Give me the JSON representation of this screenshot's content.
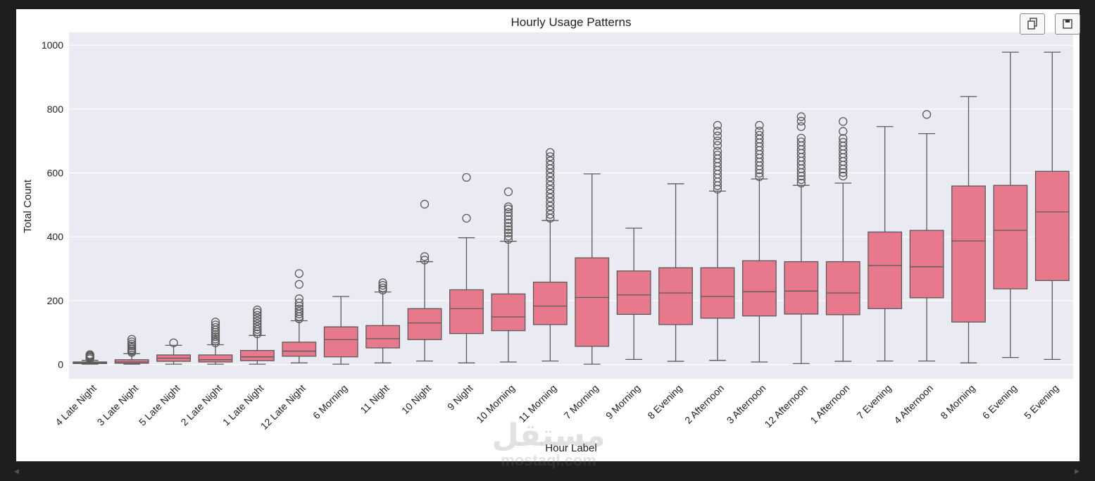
{
  "chart_data": {
    "type": "box",
    "title": "Hourly Usage Patterns",
    "xlabel": "Hour Label",
    "ylabel": "Total Count",
    "ylim": [
      -45,
      1040
    ],
    "yticks": [
      0,
      200,
      400,
      600,
      800,
      1000
    ],
    "grid": true,
    "legend": "none",
    "box_color": "#e8798c",
    "line_color": "#5a5a5a",
    "background_color": "#eaeaf2",
    "categories": [
      "4 Late Night",
      "3 Late Night",
      "5 Late Night",
      "2 Late Night",
      "1 Late Night",
      "12 Late Night",
      "6 Morning",
      "11 Night",
      "10 Night",
      "9 Night",
      "10 Morning",
      "11 Morning",
      "7 Morning",
      "9 Morning",
      "8 Evening",
      "2 Afternoon",
      "3 Afternoon",
      "12 Afternoon",
      "1 Afternoon",
      "7 Evening",
      "4 Afternoon",
      "8 Morning",
      "6 Evening",
      "5 Evening"
    ],
    "boxes": [
      {
        "q1": 3,
        "median": 5,
        "q3": 8,
        "whislo": 1,
        "whishi": 13,
        "fliers": [
          18,
          22,
          25,
          28,
          31
        ]
      },
      {
        "q1": 4,
        "median": 8,
        "q3": 15,
        "whislo": 1,
        "whishi": 34,
        "fliers": [
          38,
          42,
          47,
          52,
          58,
          64,
          71,
          79
        ]
      },
      {
        "q1": 10,
        "median": 20,
        "q3": 30,
        "whislo": 1,
        "whishi": 60,
        "fliers": [
          68
        ]
      },
      {
        "q1": 8,
        "median": 15,
        "q3": 30,
        "whislo": 1,
        "whishi": 62,
        "fliers": [
          68,
          74,
          80,
          87,
          94,
          101,
          108,
          116,
          124,
          133
        ]
      },
      {
        "q1": 12,
        "median": 24,
        "q3": 44,
        "whislo": 1,
        "whishi": 91,
        "fliers": [
          96,
          103,
          110,
          118,
          127,
          136,
          145,
          154,
          163,
          171
        ]
      },
      {
        "q1": 26,
        "median": 42,
        "q3": 70,
        "whislo": 5,
        "whishi": 137,
        "fliers": [
          143,
          150,
          158,
          166,
          174,
          183,
          193,
          206,
          251,
          285
        ]
      },
      {
        "q1": 24,
        "median": 78,
        "q3": 118,
        "whislo": 1,
        "whishi": 213,
        "fliers": []
      },
      {
        "q1": 52,
        "median": 81,
        "q3": 122,
        "whislo": 5,
        "whishi": 227,
        "fliers": [
          233,
          240,
          248,
          256
        ]
      },
      {
        "q1": 78,
        "median": 130,
        "q3": 175,
        "whislo": 11,
        "whishi": 322,
        "fliers": [
          327,
          338,
          502
        ]
      },
      {
        "q1": 97,
        "median": 175,
        "q3": 234,
        "whislo": 5,
        "whishi": 397,
        "fliers": [
          458,
          586
        ]
      },
      {
        "q1": 106,
        "median": 149,
        "q3": 221,
        "whislo": 8,
        "whishi": 386,
        "fliers": [
          392,
          402,
          412,
          422,
          432,
          443,
          454,
          465,
          476,
          487,
          494,
          541
        ]
      },
      {
        "q1": 125,
        "median": 183,
        "q3": 258,
        "whislo": 11,
        "whishi": 451,
        "fliers": [
          458,
          470,
          483,
          496,
          509,
          522,
          535,
          548,
          561,
          574,
          587,
          600,
          613,
          625,
          638,
          651,
          664
        ]
      },
      {
        "q1": 57,
        "median": 210,
        "q3": 334,
        "whislo": 1,
        "whishi": 597,
        "fliers": []
      },
      {
        "q1": 157,
        "median": 218,
        "q3": 293,
        "whislo": 16,
        "whishi": 427,
        "fliers": []
      },
      {
        "q1": 125,
        "median": 224,
        "q3": 303,
        "whislo": 10,
        "whishi": 566,
        "fliers": []
      },
      {
        "q1": 145,
        "median": 213,
        "q3": 303,
        "whislo": 13,
        "whishi": 543,
        "fliers": [
          549,
          560,
          572,
          584,
          596,
          608,
          620,
          632,
          644,
          656,
          668,
          686,
          700,
          716,
          731,
          749
        ]
      },
      {
        "q1": 152,
        "median": 228,
        "q3": 325,
        "whislo": 8,
        "whishi": 581,
        "fliers": [
          588,
          599,
          610,
          622,
          634,
          646,
          658,
          670,
          682,
          694,
          706,
          718,
          731,
          749
        ]
      },
      {
        "q1": 158,
        "median": 230,
        "q3": 322,
        "whislo": 3,
        "whishi": 561,
        "fliers": [
          568,
          579,
          590,
          601,
          613,
          625,
          637,
          649,
          661,
          673,
          685,
          697,
          709,
          745,
          762,
          776
        ]
      },
      {
        "q1": 156,
        "median": 224,
        "q3": 322,
        "whislo": 10,
        "whishi": 568,
        "fliers": [
          590,
          601,
          612,
          624,
          636,
          648,
          660,
          672,
          684,
          696,
          708,
          730,
          761
        ]
      },
      {
        "q1": 175,
        "median": 310,
        "q3": 415,
        "whislo": 11,
        "whishi": 745,
        "fliers": []
      },
      {
        "q1": 209,
        "median": 306,
        "q3": 420,
        "whislo": 11,
        "whishi": 723,
        "fliers": [
          783
        ]
      },
      {
        "q1": 133,
        "median": 387,
        "q3": 559,
        "whislo": 5,
        "whishi": 839,
        "fliers": []
      },
      {
        "q1": 237,
        "median": 420,
        "q3": 561,
        "whislo": 22,
        "whishi": 978,
        "fliers": []
      },
      {
        "q1": 263,
        "median": 478,
        "q3": 605,
        "whislo": 16,
        "whishi": 978,
        "fliers": []
      }
    ]
  },
  "toolbar": {
    "copy_icon": "copy-icon",
    "save_icon": "save-icon"
  },
  "watermark": {
    "arabic": "مستقل",
    "latin": "mostaql.com"
  }
}
